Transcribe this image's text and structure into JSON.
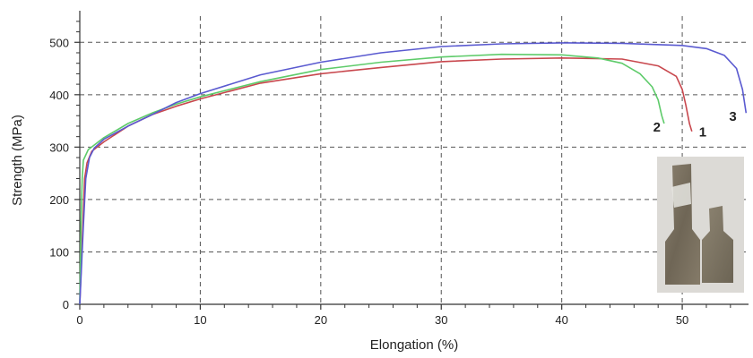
{
  "chart_data": {
    "type": "line",
    "xlabel": "Elongation (%)",
    "ylabel": "Strength (MPa)",
    "xlim": [
      0,
      55.5
    ],
    "ylim": [
      0,
      550
    ],
    "x_ticks": [
      "0",
      "10",
      "20",
      "30",
      "40",
      "50"
    ],
    "y_ticks": [
      "0",
      "100",
      "200",
      "300",
      "400",
      "500"
    ],
    "grid": true,
    "grid_style": "dashed",
    "series": [
      {
        "name": "1",
        "color": "#c8474d",
        "points": [
          [
            0,
            0
          ],
          [
            0.2,
            120
          ],
          [
            0.4,
            240
          ],
          [
            0.6,
            270
          ],
          [
            1,
            292
          ],
          [
            2,
            310
          ],
          [
            4,
            340
          ],
          [
            6,
            362
          ],
          [
            8,
            378
          ],
          [
            10,
            392
          ],
          [
            15,
            422
          ],
          [
            20,
            440
          ],
          [
            25,
            452
          ],
          [
            30,
            463
          ],
          [
            35,
            468
          ],
          [
            40,
            470
          ],
          [
            45,
            468
          ],
          [
            48,
            455
          ],
          [
            49.5,
            435
          ],
          [
            50,
            410
          ],
          [
            50.3,
            380
          ],
          [
            50.6,
            345
          ],
          [
            50.8,
            330
          ]
        ]
      },
      {
        "name": "2",
        "color": "#5ecb6a",
        "points": [
          [
            0,
            0
          ],
          [
            0.1,
            150
          ],
          [
            0.2,
            240
          ],
          [
            0.3,
            275
          ],
          [
            0.7,
            295
          ],
          [
            2,
            318
          ],
          [
            4,
            345
          ],
          [
            6,
            365
          ],
          [
            8,
            382
          ],
          [
            10,
            396
          ],
          [
            15,
            425
          ],
          [
            20,
            448
          ],
          [
            25,
            462
          ],
          [
            30,
            472
          ],
          [
            35,
            477
          ],
          [
            40,
            476
          ],
          [
            43,
            470
          ],
          [
            45,
            460
          ],
          [
            46.5,
            440
          ],
          [
            47.5,
            415
          ],
          [
            48,
            390
          ],
          [
            48.3,
            360
          ],
          [
            48.5,
            345
          ]
        ]
      },
      {
        "name": "3",
        "color": "#5a5ad0",
        "points": [
          [
            0,
            0
          ],
          [
            0.3,
            150
          ],
          [
            0.5,
            240
          ],
          [
            0.8,
            280
          ],
          [
            1.2,
            298
          ],
          [
            2,
            315
          ],
          [
            4,
            340
          ],
          [
            6,
            362
          ],
          [
            8,
            385
          ],
          [
            10,
            402
          ],
          [
            15,
            438
          ],
          [
            20,
            462
          ],
          [
            25,
            480
          ],
          [
            30,
            492
          ],
          [
            35,
            497
          ],
          [
            40,
            499
          ],
          [
            45,
            498
          ],
          [
            50,
            494
          ],
          [
            52,
            488
          ],
          [
            53.5,
            475
          ],
          [
            54.5,
            450
          ],
          [
            55,
            410
          ],
          [
            55.3,
            365
          ]
        ]
      }
    ],
    "curve_labels": [
      {
        "text": "1",
        "x": 51.7,
        "y": 320
      },
      {
        "text": "2",
        "x": 47.9,
        "y": 330
      },
      {
        "text": "3",
        "x": 54.2,
        "y": 350
      }
    ]
  },
  "inset": {
    "description_icon": "specimen-photo"
  }
}
